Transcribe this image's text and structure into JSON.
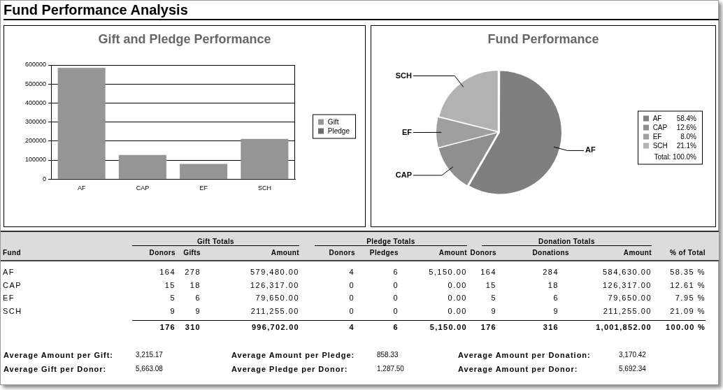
{
  "chart_data": [
    {
      "type": "other",
      "title": "Fund Performance Analysis"
    },
    {
      "type": "bar",
      "title": "Gift and Pledge Performance",
      "categories": [
        "AF",
        "CAP",
        "EF",
        "SCH"
      ],
      "series": [
        {
          "name": "Gift",
          "color": "#959595",
          "values": [
            579480,
            126317,
            79650,
            211255
          ]
        },
        {
          "name": "Pledge",
          "color": "#6e6e6e",
          "values": [
            5150,
            0,
            0,
            0
          ]
        }
      ],
      "stacked": true,
      "ylim": [
        0,
        600000
      ],
      "yticks": [
        0,
        100000,
        200000,
        300000,
        400000,
        500000,
        600000
      ],
      "grid": "y",
      "legend": "right"
    },
    {
      "type": "pie",
      "title": "Fund Performance",
      "categories": [
        "AF",
        "CAP",
        "EF",
        "SCH"
      ],
      "values": [
        58.4,
        12.6,
        8.0,
        21.1
      ],
      "colors": [
        "#7f7f7f",
        "#8f8f8f",
        "#9f9f9f",
        "#b3b3b3"
      ],
      "value_labels": [
        "58.4%",
        "12.6%",
        "8.0%",
        "21.1%"
      ],
      "legend": "right",
      "annotations": [
        "Total: 100.0%"
      ]
    },
    {
      "type": "other",
      "annotations": [
        "Gift Totals",
        "Pledge Totals",
        "Donation Totals",
        "Fund",
        "Donors",
        "Gifts",
        "Amount",
        "Donors",
        "Pledges",
        "Amount",
        "Donors",
        "Donations",
        "Amount",
        "% of Total",
        "AF",
        "164",
        "278",
        "579,480.00",
        "4",
        "6",
        "5,150.00",
        "164",
        "284",
        "584,630.00",
        "58.35 %",
        "CAP",
        "15",
        "18",
        "126,317.00",
        "0",
        "0",
        "0.00",
        "15",
        "18",
        "126,317.00",
        "12.61 %",
        "EF",
        "5",
        "6",
        "79,650.00",
        "0",
        "0",
        "0.00",
        "5",
        "6",
        "79,650.00",
        "7.95 %",
        "SCH",
        "9",
        "9",
        "211,255.00",
        "0",
        "0",
        "0.00",
        "9",
        "9",
        "211,255.00",
        "21.09 %",
        "176",
        "310",
        "996,702.00",
        "4",
        "6",
        "5,150.00",
        "176",
        "316",
        "1,001,852.00",
        "100.00 %",
        "Average Amount per Gift:",
        "3,215.17",
        "Average Amount per Pledge:",
        "858.33",
        "Average Amount per Donation:",
        "3,170.42",
        "Average Gift per Donor:",
        "5,663.08",
        "Average Pledge per Donor:",
        "1,287.50",
        "Average Amount per Donor:",
        "5,692.34"
      ]
    }
  ]
}
